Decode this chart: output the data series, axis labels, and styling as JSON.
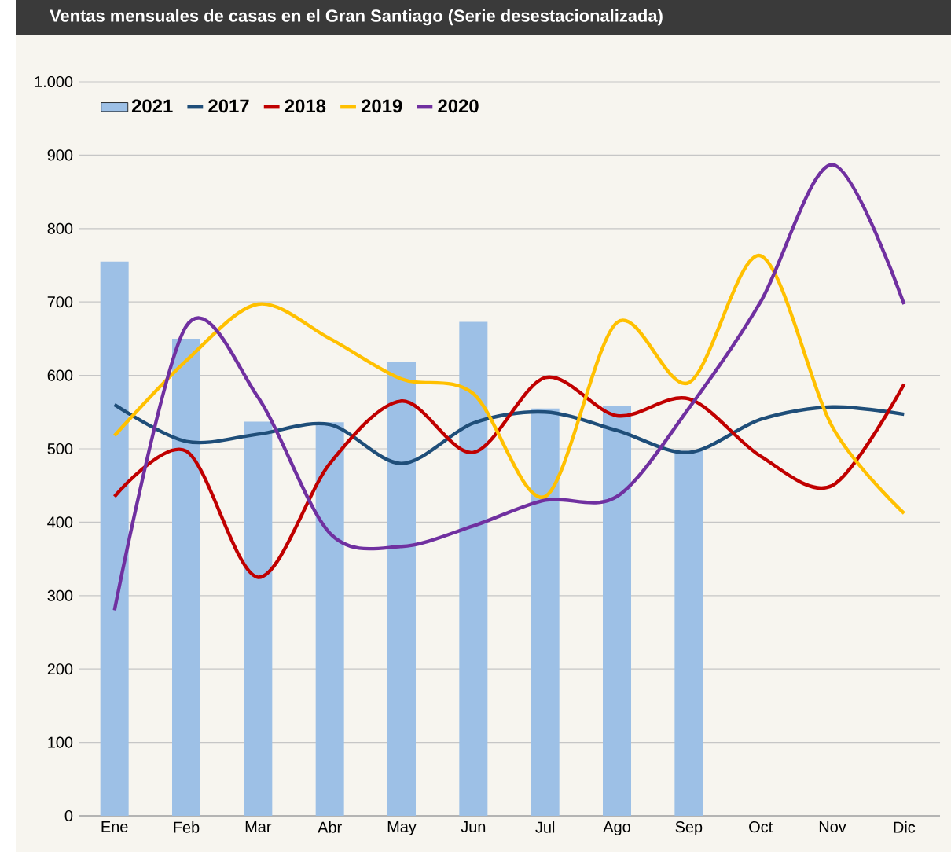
{
  "chart_data": {
    "type": "bar",
    "title": "Ventas mensuales de casas en el Gran Santiago (Serie desestacionalizada)",
    "categories": [
      "Ene",
      "Feb",
      "Mar",
      "Abr",
      "May",
      "Jun",
      "Jul",
      "Ago",
      "Sep",
      "Oct",
      "Nov",
      "Dic"
    ],
    "series": [
      {
        "name": "2021",
        "color": "#9dc0e6",
        "values": [
          755,
          650,
          537,
          536,
          618,
          673,
          555,
          558,
          497,
          null,
          null,
          null
        ]
      },
      {
        "name": "2017",
        "type": "line",
        "color": "#1f4e79",
        "values": [
          560,
          510,
          520,
          533,
          480,
          535,
          550,
          525,
          495,
          540,
          557,
          547
        ]
      },
      {
        "name": "2018",
        "type": "line",
        "color": "#c00000",
        "values": [
          435,
          497,
          325,
          480,
          565,
          495,
          597,
          545,
          568,
          490,
          450,
          588
        ]
      },
      {
        "name": "2019",
        "type": "line",
        "color": "#ffc000",
        "values": [
          518,
          620,
          697,
          650,
          595,
          575,
          435,
          672,
          590,
          763,
          530,
          412
        ]
      },
      {
        "name": "2020",
        "type": "line",
        "color": "#7030a0",
        "values": [
          280,
          667,
          570,
          385,
          367,
          395,
          430,
          435,
          555,
          700,
          887,
          697
        ]
      }
    ],
    "ylim": [
      0,
      1000
    ],
    "yticks": [
      0,
      100,
      200,
      300,
      400,
      500,
      600,
      700,
      800,
      900,
      {
        "value": 1000,
        "label": "1.000"
      }
    ],
    "grid": "y",
    "legend": "top left"
  }
}
